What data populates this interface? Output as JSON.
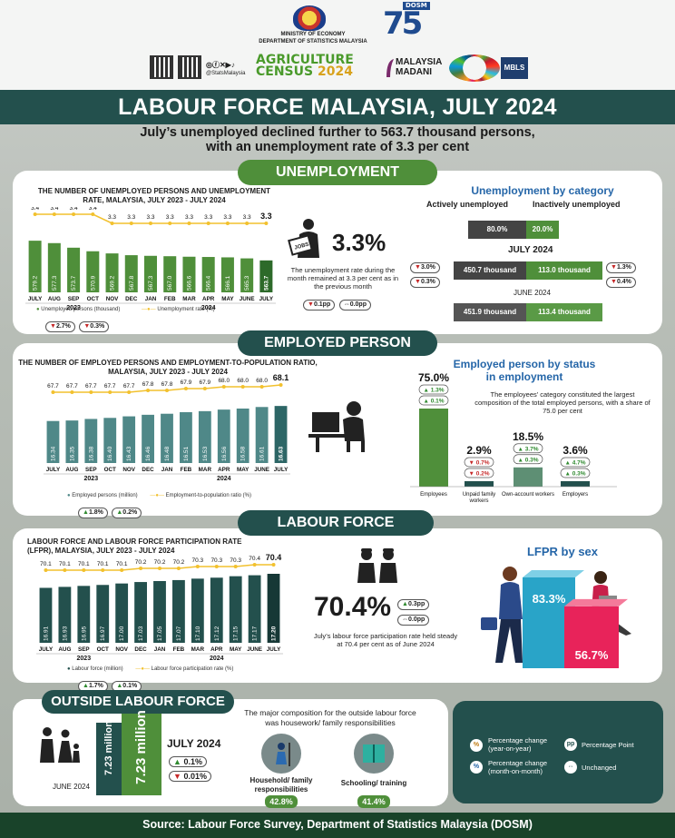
{
  "header": {
    "ministry_line1": "MINISTRY OF ECONOMY",
    "ministry_line2": "DEPARTMENT OF STATISTICS MALAYSIA",
    "social_handle": "@StatsMalaysia",
    "census_line1": "AGRICULTURE",
    "census_line2": "CENSUS",
    "census_year": "2024",
    "madani_line1": "MALAYSIA",
    "madani_line2": "MADANI",
    "mbls_label": "MBLS",
    "dosm_number": "75",
    "dosm_label": "DOSM"
  },
  "title": "LABOUR FORCE MALAYSIA, JULY 2024",
  "headline_line1": "July’s unemployed declined further to 563.7 thousand persons,",
  "headline_line2": "with an unemployment rate of 3.3 per cent",
  "unemployment": {
    "section_label": "UNEMPLOYMENT",
    "rate": "3.3%",
    "rate_note": "The unemployment rate during the month remained at 3.3 per cent as in the previous month",
    "rate_change_yoy": "0.1pp",
    "rate_change_mom": "0.0pp",
    "chart_legend_bars": "Unemployed persons (thousand)",
    "chart_legend_line": "Unemployment rate (%)",
    "legend_change_bars": "2.7%",
    "legend_change_line": "0.3%",
    "icon_label": "JOBS",
    "category": {
      "heading": "Unemployment by category",
      "col_active": "Actively unemployed",
      "col_inactive": "Inactively unemployed",
      "share_active": "80.0%",
      "share_inactive": "20.0%",
      "current_label": "JULY 2024",
      "current_active": "450.7 thousand",
      "current_inactive": "113.0 thousand",
      "active_yoy": "3.0%",
      "active_mom": "0.3%",
      "inactive_yoy": "1.3%",
      "inactive_mom": "0.4%",
      "prev_label": "JUNE 2024",
      "prev_active": "451.9 thousand",
      "prev_inactive": "113.4 thousand"
    }
  },
  "employed": {
    "section_label": "EMPLOYED PERSON",
    "chart_legend_bars": "Employed persons (million)",
    "chart_legend_line": "Employment-to-population ratio (%)",
    "legend_change_bars": "1.8%",
    "legend_change_line": "0.2%",
    "status": {
      "heading_line1": "Employed person by status",
      "heading_line2": "in employment",
      "note": "The employees’ category constituted the largest composition of the total employed persons, with a share of 75.0 per cent",
      "items": [
        {
          "label": "Employees",
          "share": "75.0%",
          "yoy": "1.3%",
          "mom": "0.1%",
          "yoy_dir": "up",
          "mom_dir": "up"
        },
        {
          "label": "Unpaid family workers",
          "share": "2.9%",
          "yoy": "0.7%",
          "mom": "0.2%",
          "yoy_dir": "down",
          "mom_dir": "down"
        },
        {
          "label": "Own-account workers",
          "share": "18.5%",
          "yoy": "3.7%",
          "mom": "0.3%",
          "yoy_dir": "up",
          "mom_dir": "up"
        },
        {
          "label": "Employers",
          "share": "3.6%",
          "yoy": "4.7%",
          "mom": "0.3%",
          "yoy_dir": "up",
          "mom_dir": "up"
        }
      ]
    }
  },
  "labour_force": {
    "section_label": "LABOUR FORCE",
    "rate": "70.4%",
    "rate_change_yoy": "0.3pp",
    "rate_change_mom": "0.0pp",
    "rate_note": "July’s labour force participation rate held steady at 70.4 per cent as of June 2024",
    "chart_legend_bars": "Labour force (million)",
    "chart_legend_line": "Labour force participation rate (%)",
    "legend_change_bars": "1.7%",
    "legend_change_line": "0.1%",
    "sex_heading": "LFPR by sex",
    "male_rate": "83.3%",
    "female_rate": "56.7%"
  },
  "outside": {
    "section_label": "OUTSIDE LABOUR FORCE",
    "june_label": "JUNE 2024",
    "june_value": "7.23 million",
    "july_label": "JULY 2024",
    "july_value": "7.23 million",
    "yoy": "0.1%",
    "mom": "0.01%",
    "composition_note": "The major composition for the outside labour force was housework/ family responsibilities",
    "item1_label": "Household/ family responsibilities",
    "item1_share": "42.8%",
    "item2_label": "Schooling/ training",
    "item2_share": "41.4%"
  },
  "legend": {
    "yoy": "Percentage change (year-on-year)",
    "mom": "Percentage change (month-on-month)",
    "pp": "Percentage Point",
    "unchanged": "Unchanged"
  },
  "source": "Source: Labour Force Survey, Department of Statistics Malaysia (DOSM)",
  "colors": {
    "teal": "#23504d",
    "green": "#4f8f3a",
    "bar_unemp": "#4f8f3a",
    "bar_emp": "#4f8888",
    "bar_lf": "#23504d",
    "line": "#f2c12e",
    "blue": "#2566a8",
    "male": "#29a4c8",
    "female": "#e8235a"
  },
  "chart_data": [
    {
      "type": "bar",
      "title": "THE NUMBER OF UNEMPLOYED PERSONS AND UNEMPLOYMENT RATE, MALAYSIA, JULY 2023 - JULY 2024",
      "categories": [
        "JULY",
        "AUG",
        "SEP",
        "OCT",
        "NOV",
        "DEC",
        "JAN",
        "FEB",
        "MAR",
        "APR",
        "MAY",
        "JUNE",
        "JULY"
      ],
      "year_labels": [
        "2023",
        "2024"
      ],
      "series": [
        {
          "name": "Unemployed persons (thousand)",
          "values": [
            579.2,
            577.3,
            573.7,
            570.9,
            569.2,
            567.8,
            567.3,
            567.0,
            566.6,
            566.4,
            566.1,
            565.3,
            563.7
          ]
        },
        {
          "name": "Unemployment rate (%)",
          "values": [
            3.4,
            3.4,
            3.4,
            3.4,
            3.3,
            3.3,
            3.3,
            3.3,
            3.3,
            3.3,
            3.3,
            3.3,
            3.3
          ]
        }
      ]
    },
    {
      "type": "bar",
      "title": "THE NUMBER OF EMPLOYED PERSONS AND EMPLOYMENT-TO-POPULATION RATIO, MALAYSIA, JULY 2023 - JULY 2024",
      "categories": [
        "JULY",
        "AUG",
        "SEP",
        "OCT",
        "NOV",
        "DEC",
        "JAN",
        "FEB",
        "MAR",
        "APR",
        "MAY",
        "JUNE",
        "JULY"
      ],
      "year_labels": [
        "2023",
        "2024"
      ],
      "series": [
        {
          "name": "Employed persons (million)",
          "values": [
            16.34,
            16.35,
            16.38,
            16.4,
            16.43,
            16.46,
            16.48,
            16.51,
            16.53,
            16.56,
            16.58,
            16.61,
            16.63
          ]
        },
        {
          "name": "Employment-to-population ratio (%)",
          "values": [
            67.7,
            67.7,
            67.7,
            67.7,
            67.7,
            67.8,
            67.8,
            67.9,
            67.9,
            68.0,
            68.0,
            68.0,
            68.1
          ]
        }
      ]
    },
    {
      "type": "bar",
      "title": "LABOUR FORCE AND LABOUR FORCE PARTICIPATION RATE (LFPR), MALAYSIA, JULY 2023 - JULY 2024",
      "categories": [
        "JULY",
        "AUG",
        "SEP",
        "OCT",
        "NOV",
        "DEC",
        "JAN",
        "FEB",
        "MAR",
        "APR",
        "MAY",
        "JUNE",
        "JULY"
      ],
      "year_labels": [
        "2023",
        "2024"
      ],
      "series": [
        {
          "name": "Labour force (million)",
          "values": [
            16.91,
            16.93,
            16.95,
            16.97,
            17.0,
            17.03,
            17.05,
            17.07,
            17.1,
            17.12,
            17.15,
            17.17,
            17.2
          ]
        },
        {
          "name": "Labour force participation rate (%)",
          "values": [
            70.1,
            70.1,
            70.1,
            70.1,
            70.1,
            70.2,
            70.2,
            70.2,
            70.3,
            70.3,
            70.3,
            70.4,
            70.4
          ]
        }
      ]
    },
    {
      "type": "bar",
      "title": "Employed person by status in employment",
      "categories": [
        "Employees",
        "Unpaid family workers",
        "Own-account workers",
        "Employers"
      ],
      "values": [
        75.0,
        2.9,
        18.5,
        3.6
      ]
    },
    {
      "type": "bar",
      "title": "LFPR by sex",
      "categories": [
        "Male",
        "Female"
      ],
      "values": [
        83.3,
        56.7
      ]
    }
  ]
}
